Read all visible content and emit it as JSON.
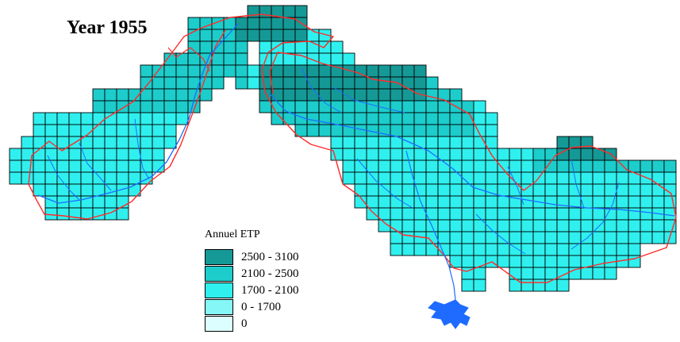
{
  "map": {
    "title": "Year 1955",
    "layers": {
      "grid": "annual-etp-grid-cells",
      "boundary": "catchment-boundary",
      "rivers": "river-network",
      "delta": "river-delta"
    },
    "colors": {
      "grid_line": "#000000",
      "boundary": "#ff2a2a",
      "rivers": "#1f6bff"
    }
  },
  "legend": {
    "title": "Annuel ETP",
    "classes": [
      {
        "label": "2500 - 3100",
        "color": "#159996"
      },
      {
        "label": "2100 - 2500",
        "color": "#1ccdcb"
      },
      {
        "label": "1700 - 2100",
        "color": "#2ff0ee"
      },
      {
        "label": "0 - 1700",
        "color": "#84f7f6"
      },
      {
        "label": "0",
        "color": "#dcfefe"
      }
    ]
  }
}
